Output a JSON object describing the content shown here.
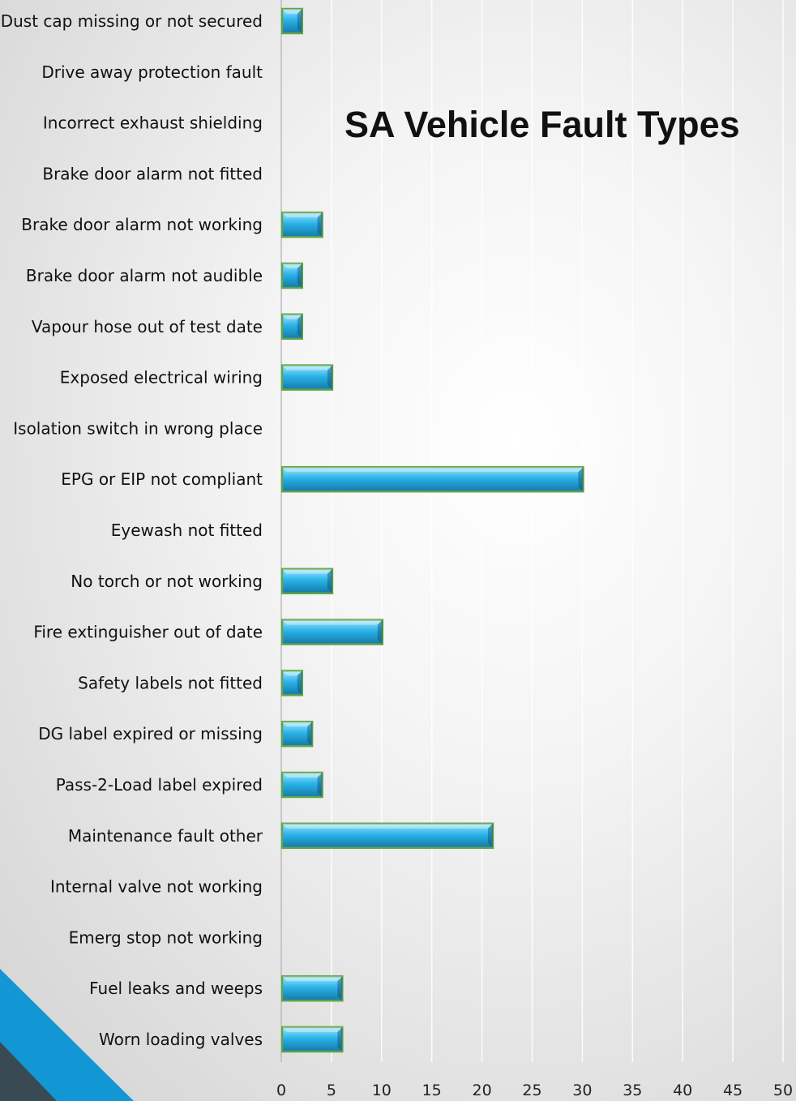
{
  "colors": {
    "bar_fill": "#2bb3e8",
    "bar_edge": "#5fa34a",
    "corner_blue": "#1296d4",
    "corner_dark": "#3a4a55",
    "grid": "#ffffff"
  },
  "chart_data": {
    "type": "bar",
    "orientation": "horizontal",
    "title": "SA Vehicle Fault Types",
    "xlabel": "",
    "ylabel": "",
    "xlim": [
      0,
      50
    ],
    "ticks": [
      "0",
      "5",
      "10",
      "15",
      "20",
      "25",
      "30",
      "35",
      "40",
      "45",
      "50"
    ],
    "grid": "vertical",
    "legend": "none",
    "categories": [
      "Dust cap missing or not secured",
      "Drive away protection fault",
      "Incorrect exhaust shielding",
      "Brake door alarm not fitted",
      "Brake door alarm not working",
      "Brake door alarm not audible",
      "Vapour hose out of test date",
      "Exposed electrical wiring",
      "Isolation switch in wrong place",
      "EPG or EIP not compliant",
      "Eyewash not fitted",
      "No torch or not working",
      "Fire extinguisher out of date",
      "Safety labels not fitted",
      "DG label expired or missing",
      "Pass-2-Load label expired",
      "Maintenance fault other",
      "Internal valve not working",
      "Emerg stop not working",
      "Fuel leaks and weeps",
      "Worn loading valves"
    ],
    "values": [
      2,
      0,
      0,
      0,
      4,
      2,
      2,
      5,
      0,
      30,
      0,
      5,
      10,
      2,
      3,
      4,
      21,
      0,
      0,
      6,
      6
    ]
  }
}
